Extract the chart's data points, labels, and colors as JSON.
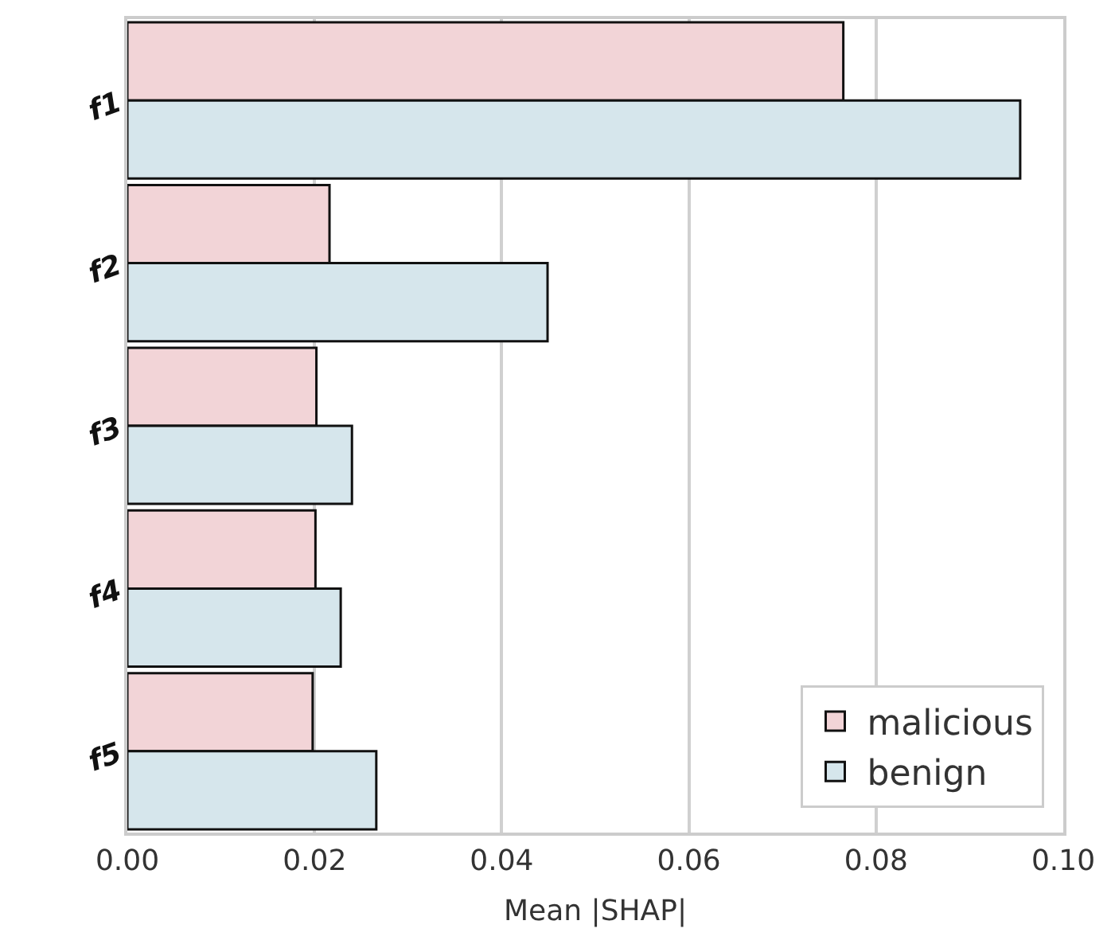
{
  "chart_data": {
    "type": "bar",
    "orientation": "horizontal",
    "xlabel": "Mean |SHAP|",
    "categories": [
      "f1",
      "f2",
      "f3",
      "f4",
      "f5"
    ],
    "series": [
      {
        "name": "malicious",
        "color": "#f2d4d7",
        "values": [
          0.0765,
          0.0216,
          0.0202,
          0.0201,
          0.0198
        ]
      },
      {
        "name": "benign",
        "color": "#d6e6ec",
        "values": [
          0.0954,
          0.0449,
          0.024,
          0.0228,
          0.0266
        ]
      }
    ],
    "xlim": [
      0,
      0.1
    ],
    "xticks": [
      {
        "value": 0,
        "label": "0.00"
      },
      {
        "value": 0.02,
        "label": "0.02"
      },
      {
        "value": 0.04,
        "label": "0.04"
      },
      {
        "value": 0.06,
        "label": "0.06"
      },
      {
        "value": 0.08,
        "label": "0.08"
      },
      {
        "value": 0.1,
        "label": "0.10"
      }
    ],
    "grid": "x",
    "legend": "bottom right"
  }
}
